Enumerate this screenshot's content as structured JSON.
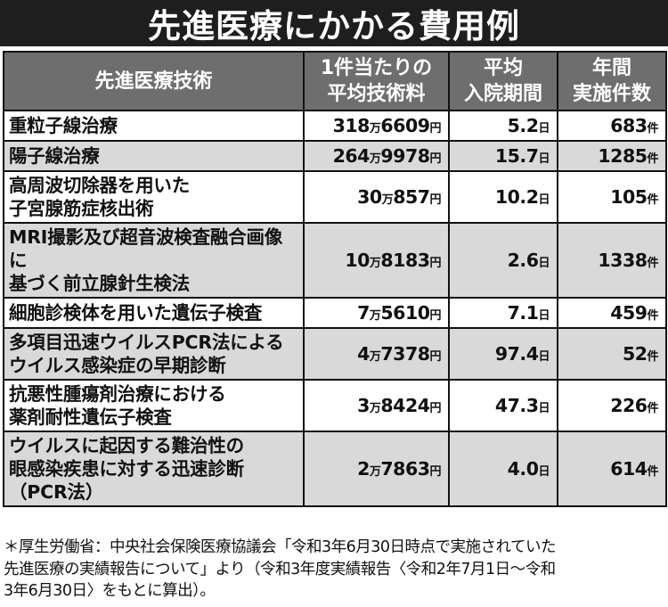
{
  "title": "先進医療にかかる費用例",
  "table": {
    "headers": [
      [
        "先進医療技術"
      ],
      [
        "1件当たりの",
        "平均技術料"
      ],
      [
        "平均",
        "入院期間"
      ],
      [
        "年間",
        "実施件数"
      ]
    ],
    "rows": [
      {
        "name": [
          "重粒子線治療"
        ],
        "fee": {
          "man": "318",
          "man_unit": "万",
          "rest": "6609",
          "yen_unit": "円"
        },
        "stay": {
          "value": "5.2",
          "unit": "日"
        },
        "count": {
          "value": "683",
          "unit": "件"
        }
      },
      {
        "name": [
          "陽子線治療"
        ],
        "fee": {
          "man": "264",
          "man_unit": "万",
          "rest": "9978",
          "yen_unit": "円"
        },
        "stay": {
          "value": "15.7",
          "unit": "日"
        },
        "count": {
          "value": "1285",
          "unit": "件"
        }
      },
      {
        "name": [
          "高周波切除器を用いた",
          "子宮腺筋症核出術"
        ],
        "fee": {
          "man": "30",
          "man_unit": "万",
          "rest": "857",
          "yen_unit": "円"
        },
        "stay": {
          "value": "10.2",
          "unit": "日"
        },
        "count": {
          "value": "105",
          "unit": "件"
        }
      },
      {
        "name": [
          "MRI撮影及び超音波検査融合画像に",
          "基づく前立腺針生検法"
        ],
        "fee": {
          "man": "10",
          "man_unit": "万",
          "rest": "8183",
          "yen_unit": "円"
        },
        "stay": {
          "value": "2.6",
          "unit": "日"
        },
        "count": {
          "value": "1338",
          "unit": "件"
        }
      },
      {
        "name": [
          "細胞診検体を用いた遺伝子検査"
        ],
        "fee": {
          "man": "7",
          "man_unit": "万",
          "rest": "5610",
          "yen_unit": "円"
        },
        "stay": {
          "value": "7.1",
          "unit": "日"
        },
        "count": {
          "value": "459",
          "unit": "件"
        }
      },
      {
        "name": [
          "多項目迅速ウイルスPCR法による",
          "ウイルス感染症の早期診断"
        ],
        "fee": {
          "man": "4",
          "man_unit": "万",
          "rest": "7378",
          "yen_unit": "円"
        },
        "stay": {
          "value": "97.4",
          "unit": "日"
        },
        "count": {
          "value": "52",
          "unit": "件"
        }
      },
      {
        "name": [
          "抗悪性腫瘍剤治療における",
          "薬剤耐性遺伝子検査"
        ],
        "fee": {
          "man": "3",
          "man_unit": "万",
          "rest": "8424",
          "yen_unit": "円"
        },
        "stay": {
          "value": "47.3",
          "unit": "日"
        },
        "count": {
          "value": "226",
          "unit": "件"
        }
      },
      {
        "name": [
          "ウイルスに起因する難治性の",
          "眼感染疾患に対する迅速診断",
          "（PCR法）"
        ],
        "fee": {
          "man": "2",
          "man_unit": "万",
          "rest": "7863",
          "yen_unit": "円"
        },
        "stay": {
          "value": "4.0",
          "unit": "日"
        },
        "count": {
          "value": "614",
          "unit": "件"
        }
      }
    ]
  },
  "footnote": [
    "＊厚生労働省：中央社会保険医療協議会「令和3年6月30日時点で実施されていた",
    "先進医療の実績報告について」より（令和3年度実績報告〈令和2年7月1日〜令和",
    "3年6月30日〉をもとに算出）。"
  ],
  "colors": {
    "title_bg": "#1e1e1e",
    "header_bg": "#6e6e6e",
    "alt_row_bg": "#d9d9d9"
  }
}
